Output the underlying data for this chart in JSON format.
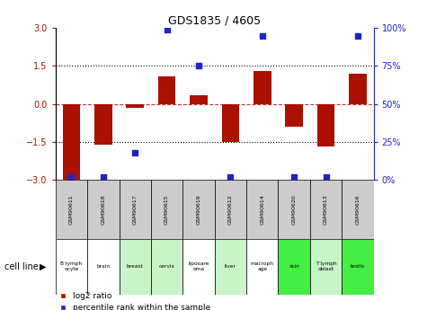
{
  "title": "GDS1835 / 4605",
  "samples": [
    "GSM90611",
    "GSM90618",
    "GSM90617",
    "GSM90615",
    "GSM90619",
    "GSM90612",
    "GSM90614",
    "GSM90620",
    "GSM90613",
    "GSM90616"
  ],
  "cell_lines": [
    "B lymph\nocyte",
    "brain",
    "breast",
    "cervix",
    "liposare\noma",
    "liver",
    "macroph\nage",
    "skin",
    "T lymph\noblast",
    "testis"
  ],
  "cell_line_colors": [
    "#ffffff",
    "#ffffff",
    "#c8f5c8",
    "#c8f5c8",
    "#ffffff",
    "#c8f5c8",
    "#ffffff",
    "#44ee44",
    "#c8f5c8",
    "#44ee44"
  ],
  "log2_ratio": [
    -3.0,
    -1.6,
    -0.15,
    1.1,
    0.35,
    -1.5,
    1.3,
    -0.9,
    -1.7,
    1.2
  ],
  "percentile_rank": [
    2,
    2,
    18,
    99,
    75,
    2,
    95,
    2,
    2,
    95
  ],
  "ylim": [
    -3,
    3
  ],
  "yticks": [
    -3,
    -1.5,
    0,
    1.5,
    3
  ],
  "y2ticks": [
    0,
    25,
    50,
    75,
    100
  ],
  "y2labels": [
    "0%",
    "25%",
    "50%",
    "75%",
    "100%"
  ],
  "bar_color": "#aa1100",
  "dot_color": "#2222cc",
  "bar_width": 0.55,
  "legend_red": "log2 ratio",
  "legend_blue": "percentile rank within the sample",
  "cell_line_label": "cell line",
  "gsm_bg": "#cccccc"
}
